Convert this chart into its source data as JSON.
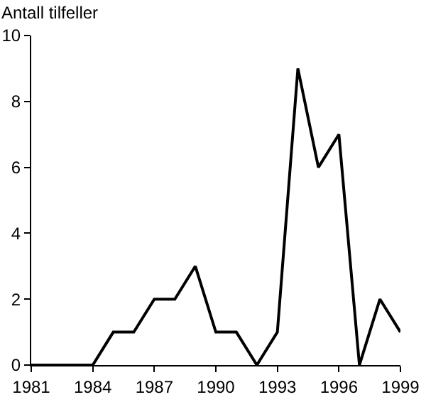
{
  "chart_data": {
    "type": "line",
    "ylabel": "Antall tilfeller",
    "x": [
      1981,
      1982,
      1983,
      1984,
      1985,
      1986,
      1987,
      1988,
      1989,
      1990,
      1991,
      1992,
      1993,
      1994,
      1995,
      1996,
      1997,
      1998,
      1999
    ],
    "series": [
      {
        "color": "#000000",
        "values": [
          0,
          0,
          0,
          0,
          1,
          1,
          2,
          2,
          3,
          1,
          1,
          0,
          1,
          9,
          6,
          7,
          0,
          2,
          1
        ]
      }
    ],
    "xlim": [
      1981,
      1999
    ],
    "xticks": [
      1981,
      1984,
      1987,
      1990,
      1993,
      1996,
      1999
    ],
    "ylim": [
      0,
      10
    ],
    "yticks": [
      0,
      2,
      4,
      6,
      8,
      10
    ],
    "marker": "none",
    "line_style": "solid"
  }
}
